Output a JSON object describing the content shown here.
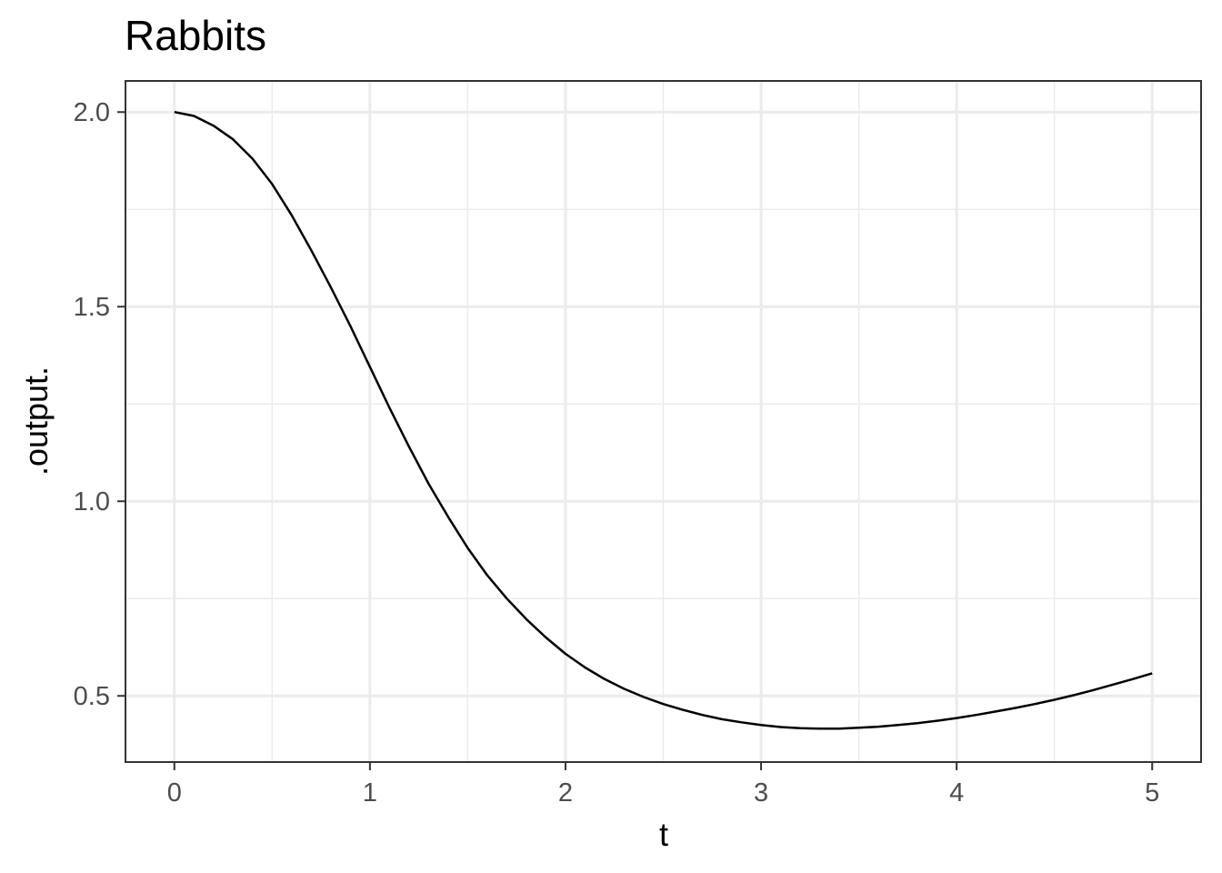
{
  "chart_data": {
    "type": "line",
    "title": "Rabbits",
    "xlabel": "t",
    "ylabel": ".output.",
    "xlim": [
      -0.25,
      5.25
    ],
    "ylim": [
      0.33,
      2.08
    ],
    "xticks": [
      0,
      1,
      2,
      3,
      4,
      5
    ],
    "xtick_labels": [
      "0",
      "1",
      "2",
      "3",
      "4",
      "5"
    ],
    "yticks": [
      0.5,
      1.0,
      1.5,
      2.0
    ],
    "ytick_labels": [
      "0.5",
      "1.0",
      "1.5",
      "2.0"
    ],
    "grid": true,
    "line_color": "#000000",
    "series": [
      {
        "x": [
          0,
          0.1,
          0.2,
          0.3,
          0.4,
          0.5,
          0.6,
          0.7,
          0.8,
          0.9,
          1.0,
          1.1,
          1.2,
          1.3,
          1.4,
          1.5,
          1.6,
          1.7,
          1.8,
          1.9,
          2.0,
          2.1,
          2.2,
          2.3,
          2.4,
          2.5,
          2.6,
          2.7,
          2.8,
          2.9,
          3.0,
          3.1,
          3.2,
          3.3,
          3.4,
          3.5,
          3.6,
          3.7,
          3.8,
          3.9,
          4.0,
          4.1,
          4.2,
          4.3,
          4.4,
          4.5,
          4.6,
          4.7,
          4.8,
          4.9,
          5.0
        ],
        "values": [
          2.0,
          1.99,
          1.965,
          1.93,
          1.88,
          1.815,
          1.735,
          1.645,
          1.55,
          1.45,
          1.345,
          1.24,
          1.14,
          1.045,
          0.96,
          0.88,
          0.81,
          0.75,
          0.697,
          0.65,
          0.608,
          0.573,
          0.543,
          0.518,
          0.497,
          0.479,
          0.464,
          0.451,
          0.44,
          0.432,
          0.425,
          0.42,
          0.417,
          0.416,
          0.416,
          0.418,
          0.421,
          0.425,
          0.43,
          0.436,
          0.443,
          0.451,
          0.46,
          0.469,
          0.479,
          0.49,
          0.502,
          0.515,
          0.529,
          0.543,
          0.558
        ]
      }
    ]
  }
}
